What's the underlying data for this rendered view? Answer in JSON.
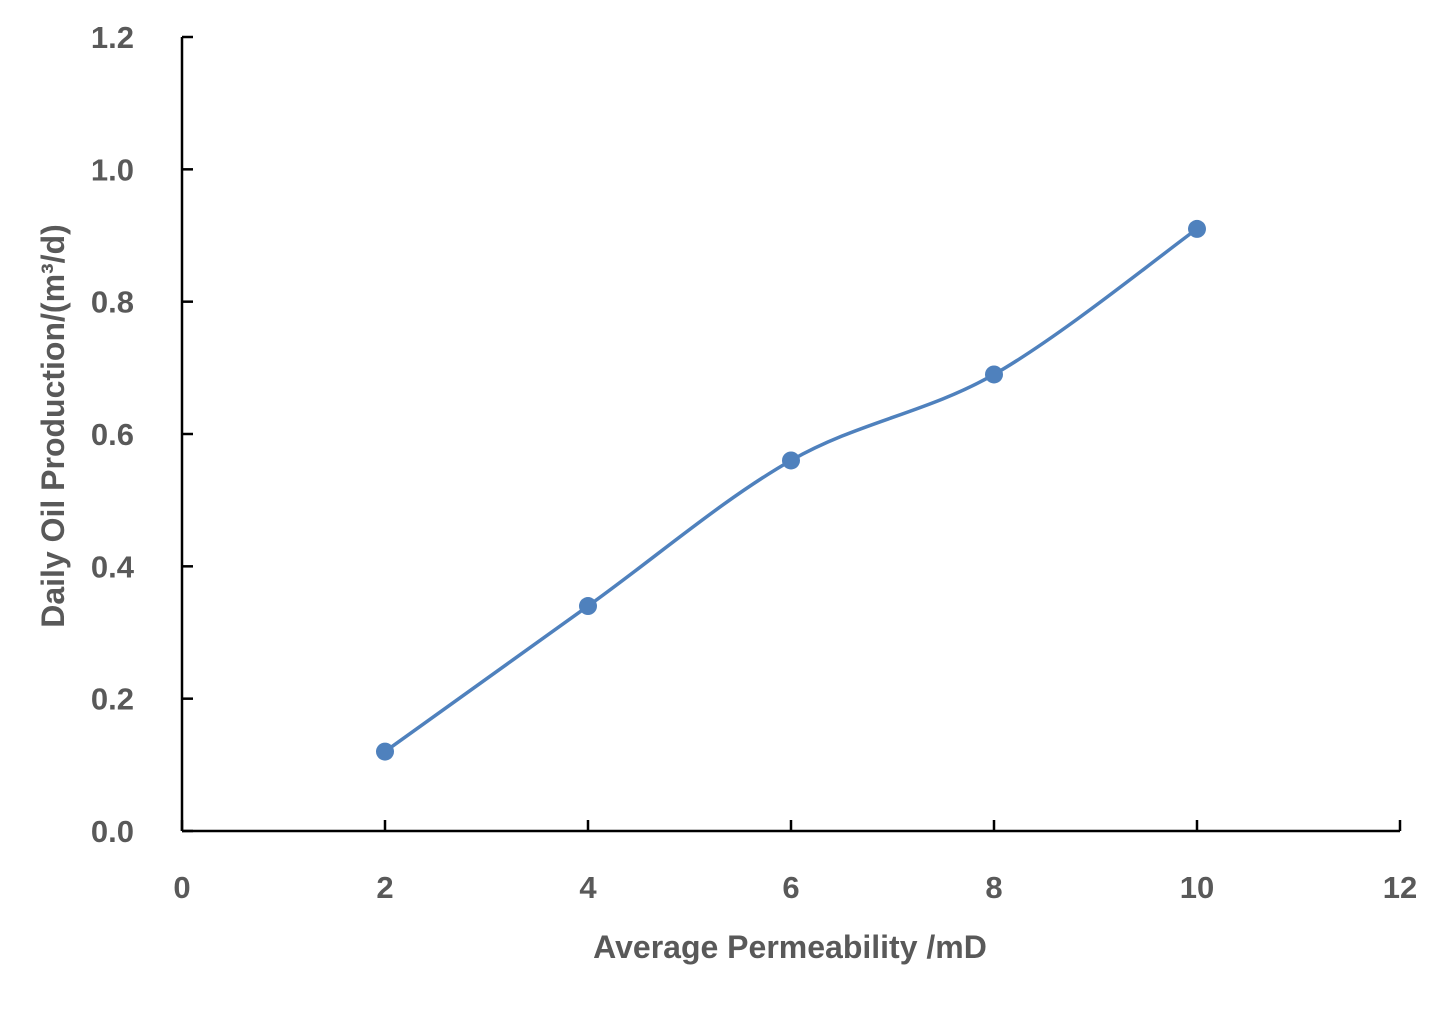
{
  "chart_data": {
    "type": "line",
    "title": "",
    "xlabel": "Average Permeability /mD",
    "ylabel": "Daily Oil Production/(m³/d)",
    "xlim": [
      0,
      12
    ],
    "ylim": [
      0,
      1.2
    ],
    "x_ticks": [
      "0",
      "2",
      "4",
      "6",
      "8",
      "10",
      "12"
    ],
    "y_ticks": [
      "0.0",
      "0.2",
      "0.4",
      "0.6",
      "0.8",
      "1.0",
      "1.2"
    ],
    "smooth": true,
    "grid": false,
    "legend": "none",
    "series": [
      {
        "color": "#4f81bd",
        "marker": "circle",
        "x": [
          2,
          4,
          6,
          8,
          10
        ],
        "y": [
          0.12,
          0.34,
          0.56,
          0.69,
          0.91
        ]
      }
    ]
  }
}
